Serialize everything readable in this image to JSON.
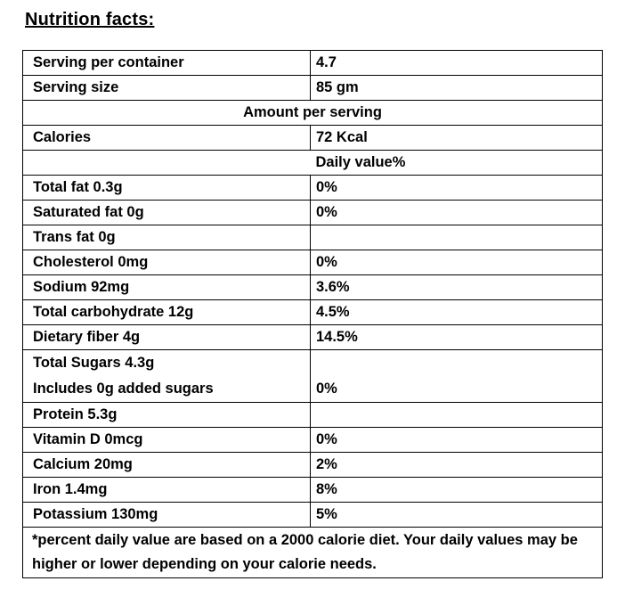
{
  "title": "Nutrition facts:",
  "serving": [
    {
      "label": "Serving per container",
      "value": "4.7"
    },
    {
      "label": "Serving size",
      "value": "85 gm"
    }
  ],
  "amount_header": "Amount per serving",
  "calories": {
    "label": "Calories",
    "value": "72 Kcal"
  },
  "daily_value_header": "Daily value%",
  "nutrients": [
    {
      "label": "Total fat 0.3g",
      "value": "0%"
    },
    {
      "label": "Saturated fat 0g",
      "value": "0%"
    },
    {
      "label": "Trans fat 0g",
      "value": ""
    },
    {
      "label": "Cholesterol  0mg",
      "value": "0%"
    },
    {
      "label": "Sodium  92mg",
      "value": "3.6%"
    },
    {
      "label": "Total carbohydrate  12g",
      "value": "4.5%"
    },
    {
      "label": "Dietary fiber   4g",
      "value": "14.5%"
    }
  ],
  "sugars": {
    "label1": "Total Sugars  4.3g",
    "label2": "Includes 0g added sugars",
    "value": "0%"
  },
  "nutrients2": [
    {
      "label": "Protein   5.3g",
      "value": ""
    },
    {
      "label": "Vitamin D  0mcg",
      "value": "0%"
    },
    {
      "label": "Calcium 20mg",
      "value": "2%"
    },
    {
      "label": "Iron 1.4mg",
      "value": "8%"
    },
    {
      "label": "Potassium   130mg",
      "value": "5%"
    }
  ],
  "footnote": "*percent daily value are based on a 2000 calorie diet. Your daily values may be higher or lower depending on your calorie needs."
}
